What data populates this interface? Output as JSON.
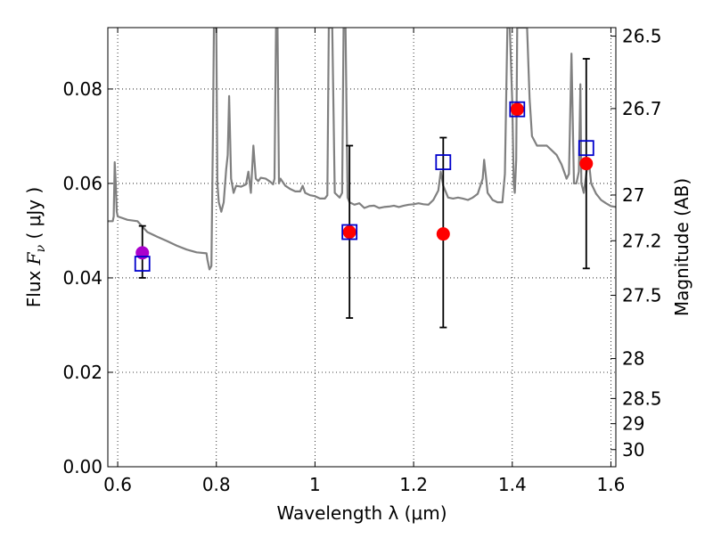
{
  "chart_data": {
    "type": "scatter",
    "title": "",
    "xlabel": "Wavelength  λ (μm)",
    "ylabel_parts": {
      "pre": "Flux  ",
      "sym": "F",
      "sub": "ν",
      "post": "  ( μJy )"
    },
    "ylabel_right": "Magnitude (AB)",
    "xlim": [
      0.58,
      1.61
    ],
    "ylim": [
      0.0,
      0.093
    ],
    "x_ticks": [
      0.6,
      0.8,
      1.0,
      1.2,
      1.4,
      1.6
    ],
    "x_tick_labels": [
      "0.6",
      "0.8",
      "1",
      "1.2",
      "1.4",
      "1.6"
    ],
    "y_ticks": [
      0.0,
      0.02,
      0.04,
      0.06,
      0.08
    ],
    "y_tick_labels": [
      "0.00",
      "0.02",
      "0.04",
      "0.06",
      "0.08"
    ],
    "right_ticks": [
      {
        "label": "26.5",
        "mag": 26.5
      },
      {
        "label": "26.7",
        "mag": 26.7
      },
      {
        "label": "27",
        "mag": 27.0
      },
      {
        "label": "27.2",
        "mag": 27.2
      },
      {
        "label": "27.5",
        "mag": 27.5
      },
      {
        "label": "28",
        "mag": 28.0
      },
      {
        "label": "28.5",
        "mag": 28.5
      },
      {
        "label": "29",
        "mag": 29.0
      },
      {
        "label": "30",
        "mag": 30.0
      }
    ],
    "grid": true,
    "colors": {
      "spectrum": "#808080",
      "observed": "#ff0000",
      "model": "#0000cc",
      "first_point": "#aa00cc",
      "errorbar": "#000000"
    },
    "observed_points": [
      {
        "x": 0.65,
        "y": 0.0453,
        "err_low": 0.0053,
        "err_high": 0.0057,
        "color": "#aa00cc"
      },
      {
        "x": 1.07,
        "y": 0.0497,
        "err_low": 0.0182,
        "err_high": 0.0183,
        "color": "#ff0000"
      },
      {
        "x": 1.26,
        "y": 0.0493,
        "err_low": 0.0198,
        "err_high": 0.0204,
        "color": "#ff0000"
      },
      {
        "x": 1.41,
        "y": 0.0757,
        "err_low": 0.0,
        "err_high": 0.0,
        "color": "#ff0000"
      },
      {
        "x": 1.55,
        "y": 0.0642,
        "err_low": 0.0222,
        "err_high": 0.0222,
        "color": "#ff0000"
      }
    ],
    "model_points": [
      {
        "x": 0.65,
        "y": 0.043
      },
      {
        "x": 1.07,
        "y": 0.0497
      },
      {
        "x": 1.26,
        "y": 0.0645
      },
      {
        "x": 1.41,
        "y": 0.0757
      },
      {
        "x": 1.55,
        "y": 0.0675
      }
    ],
    "spectrum": [
      [
        0.58,
        0.052
      ],
      [
        0.59,
        0.052
      ],
      [
        0.592,
        0.053
      ],
      [
        0.594,
        0.0645
      ],
      [
        0.596,
        0.06
      ],
      [
        0.598,
        0.054
      ],
      [
        0.6,
        0.053
      ],
      [
        0.62,
        0.0523
      ],
      [
        0.64,
        0.052
      ],
      [
        0.66,
        0.0497
      ],
      [
        0.68,
        0.0487
      ],
      [
        0.7,
        0.0478
      ],
      [
        0.72,
        0.0468
      ],
      [
        0.74,
        0.046
      ],
      [
        0.76,
        0.0454
      ],
      [
        0.78,
        0.0452
      ],
      [
        0.782,
        0.0438
      ],
      [
        0.786,
        0.0418
      ],
      [
        0.79,
        0.0425
      ],
      [
        0.793,
        0.07
      ],
      [
        0.795,
        0.093
      ],
      [
        0.8,
        0.093
      ],
      [
        0.802,
        0.06
      ],
      [
        0.805,
        0.056
      ],
      [
        0.81,
        0.054
      ],
      [
        0.815,
        0.056
      ],
      [
        0.82,
        0.063
      ],
      [
        0.823,
        0.066
      ],
      [
        0.826,
        0.0785
      ],
      [
        0.83,
        0.061
      ],
      [
        0.835,
        0.058
      ],
      [
        0.84,
        0.0595
      ],
      [
        0.85,
        0.0593
      ],
      [
        0.86,
        0.0598
      ],
      [
        0.865,
        0.0625
      ],
      [
        0.87,
        0.058
      ],
      [
        0.875,
        0.068
      ],
      [
        0.88,
        0.061
      ],
      [
        0.885,
        0.0605
      ],
      [
        0.89,
        0.0612
      ],
      [
        0.9,
        0.061
      ],
      [
        0.91,
        0.0603
      ],
      [
        0.915,
        0.0598
      ],
      [
        0.918,
        0.061
      ],
      [
        0.921,
        0.093
      ],
      [
        0.924,
        0.093
      ],
      [
        0.927,
        0.06
      ],
      [
        0.93,
        0.061
      ],
      [
        0.94,
        0.0595
      ],
      [
        0.95,
        0.0588
      ],
      [
        0.96,
        0.0583
      ],
      [
        0.97,
        0.0583
      ],
      [
        0.975,
        0.0595
      ],
      [
        0.98,
        0.058
      ],
      [
        0.99,
        0.0575
      ],
      [
        1.0,
        0.0573
      ],
      [
        1.01,
        0.0568
      ],
      [
        1.02,
        0.0568
      ],
      [
        1.025,
        0.0575
      ],
      [
        1.028,
        0.093
      ],
      [
        1.035,
        0.093
      ],
      [
        1.04,
        0.058
      ],
      [
        1.05,
        0.057
      ],
      [
        1.055,
        0.058
      ],
      [
        1.058,
        0.093
      ],
      [
        1.062,
        0.093
      ],
      [
        1.066,
        0.057
      ],
      [
        1.07,
        0.056
      ],
      [
        1.08,
        0.0555
      ],
      [
        1.09,
        0.0558
      ],
      [
        1.1,
        0.0548
      ],
      [
        1.11,
        0.0552
      ],
      [
        1.12,
        0.0553
      ],
      [
        1.13,
        0.0548
      ],
      [
        1.14,
        0.055
      ],
      [
        1.15,
        0.0551
      ],
      [
        1.16,
        0.0553
      ],
      [
        1.17,
        0.055
      ],
      [
        1.18,
        0.0553
      ],
      [
        1.19,
        0.0555
      ],
      [
        1.2,
        0.0556
      ],
      [
        1.21,
        0.0558
      ],
      [
        1.22,
        0.0556
      ],
      [
        1.23,
        0.0555
      ],
      [
        1.24,
        0.0565
      ],
      [
        1.25,
        0.0585
      ],
      [
        1.255,
        0.0625
      ],
      [
        1.26,
        0.0595
      ],
      [
        1.27,
        0.057
      ],
      [
        1.28,
        0.0568
      ],
      [
        1.29,
        0.057
      ],
      [
        1.3,
        0.0568
      ],
      [
        1.31,
        0.0565
      ],
      [
        1.32,
        0.057
      ],
      [
        1.33,
        0.0578
      ],
      [
        1.34,
        0.061
      ],
      [
        1.343,
        0.065
      ],
      [
        1.347,
        0.061
      ],
      [
        1.35,
        0.058
      ],
      [
        1.36,
        0.0565
      ],
      [
        1.37,
        0.056
      ],
      [
        1.38,
        0.056
      ],
      [
        1.385,
        0.062
      ],
      [
        1.39,
        0.093
      ],
      [
        1.395,
        0.093
      ],
      [
        1.4,
        0.077
      ],
      [
        1.403,
        0.06
      ],
      [
        1.405,
        0.058
      ],
      [
        1.408,
        0.065
      ],
      [
        1.41,
        0.093
      ],
      [
        1.43,
        0.093
      ],
      [
        1.435,
        0.078
      ],
      [
        1.44,
        0.07
      ],
      [
        1.45,
        0.068
      ],
      [
        1.46,
        0.068
      ],
      [
        1.47,
        0.068
      ],
      [
        1.48,
        0.067
      ],
      [
        1.49,
        0.066
      ],
      [
        1.5,
        0.064
      ],
      [
        1.51,
        0.061
      ],
      [
        1.515,
        0.062
      ],
      [
        1.52,
        0.0875
      ],
      [
        1.525,
        0.06
      ],
      [
        1.53,
        0.06
      ],
      [
        1.535,
        0.0625
      ],
      [
        1.538,
        0.081
      ],
      [
        1.54,
        0.06
      ],
      [
        1.545,
        0.058
      ],
      [
        1.55,
        0.062
      ],
      [
        1.555,
        0.065
      ],
      [
        1.56,
        0.06
      ],
      [
        1.57,
        0.0578
      ],
      [
        1.58,
        0.0565
      ],
      [
        1.59,
        0.0558
      ],
      [
        1.6,
        0.0552
      ],
      [
        1.61,
        0.055
      ]
    ]
  }
}
